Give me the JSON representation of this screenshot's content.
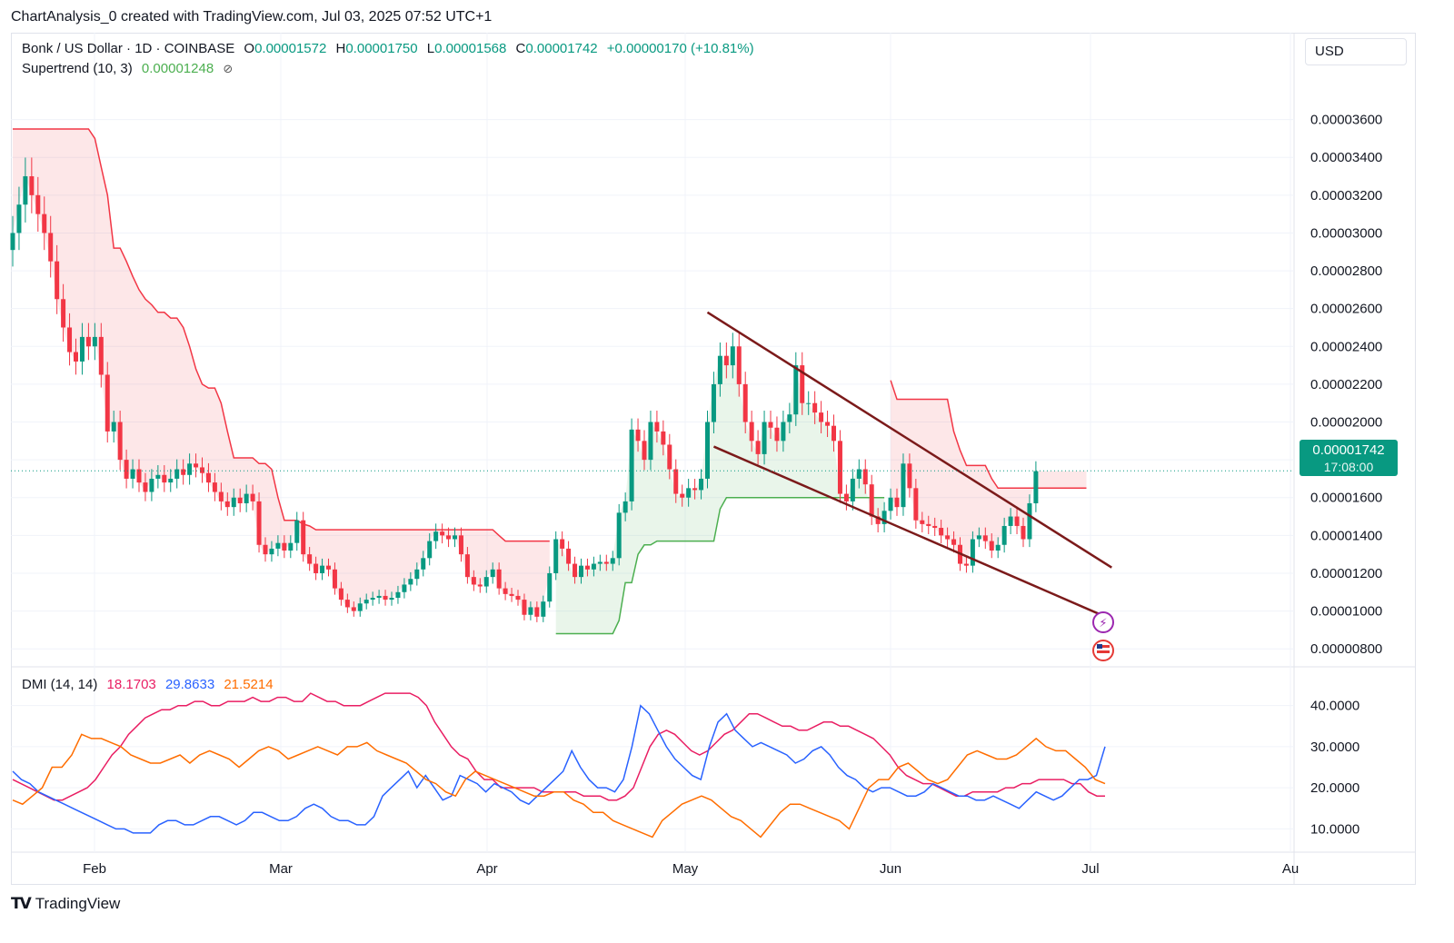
{
  "header": {
    "credit": "ChartAnalysis_0 created with TradingView.com, Jul 03, 2025 07:52 UTC+1"
  },
  "legend": {
    "symbol": "Bonk / US Dollar · 1D · COINBASE",
    "o_label": "O",
    "o_value": "0.00001572",
    "h_label": "H",
    "h_value": "0.00001750",
    "l_label": "L",
    "l_value": "0.00001568",
    "c_label": "C",
    "c_value": "0.00001742",
    "change": "+0.00000170 (+10.81%)",
    "supertrend_label": "Supertrend (10, 3)",
    "supertrend_value": "0.00001248",
    "supertrend_icon": "eye-slash-icon",
    "dmi_label": "DMI (14, 14)",
    "dmi_plus": "18.1703",
    "dmi_minus": "29.8633",
    "dmi_adx": "21.5214"
  },
  "toolbar": {
    "currency": "USD"
  },
  "price_tag": {
    "value": "0.00001742",
    "countdown": "17:08:00"
  },
  "brand": {
    "name": "TradingView",
    "icon": "tradingview-logo-icon"
  },
  "colors": {
    "up": "#089981",
    "down": "#f23645",
    "supertrend_up": "#4caf50",
    "supertrend_down": "#f23645",
    "trendline": "#7b1a1a",
    "dmi_plus": "#e91e63",
    "dmi_minus": "#2962ff",
    "adx": "#ff6d00"
  },
  "chart_data": [
    {
      "type": "candlestick",
      "title": "Bonk / US Dollar · 1D · COINBASE",
      "ylim": [
        7e-06,
        3.8e-05
      ],
      "y_ticks": [
        "0.00003600",
        "0.00003400",
        "0.00003200",
        "0.00003000",
        "0.00002800",
        "0.00002600",
        "0.00002400",
        "0.00002200",
        "0.00002000",
        "0.00001800",
        "0.00001600",
        "0.00001400",
        "0.00001200",
        "0.00001000",
        "0.00000800"
      ],
      "x_ticks": [
        "Feb",
        "Mar",
        "Apr",
        "May",
        "Jun",
        "Jul",
        "Au"
      ],
      "close_series": [
        3e-05,
        3.15e-05,
        3.3e-05,
        3.2e-05,
        3.1e-05,
        3e-05,
        2.85e-05,
        2.65e-05,
        2.5e-05,
        2.37e-05,
        2.32e-05,
        2.45e-05,
        2.4e-05,
        2.45e-05,
        2.25e-05,
        1.95e-05,
        2e-05,
        1.8e-05,
        1.7e-05,
        1.75e-05,
        1.68e-05,
        1.63e-05,
        1.7e-05,
        1.72e-05,
        1.68e-05,
        1.7e-05,
        1.75e-05,
        1.72e-05,
        1.78e-05,
        1.76e-05,
        1.73e-05,
        1.68e-05,
        1.63e-05,
        1.58e-05,
        1.55e-05,
        1.6e-05,
        1.57e-05,
        1.62e-05,
        1.58e-05,
        1.35e-05,
        1.3e-05,
        1.33e-05,
        1.36e-05,
        1.32e-05,
        1.36e-05,
        1.48e-05,
        1.3e-05,
        1.25e-05,
        1.2e-05,
        1.24e-05,
        1.22e-05,
        1.12e-05,
        1.06e-05,
        1.02e-05,
        1e-05,
        1.04e-05,
        1.06e-05,
        1.07e-05,
        1.08e-05,
        1.06e-05,
        1.07e-05,
        1.1e-05,
        1.14e-05,
        1.17e-05,
        1.22e-05,
        1.28e-05,
        1.37e-05,
        1.42e-05,
        1.4e-05,
        1.38e-05,
        1.4e-05,
        1.3e-05,
        1.18e-05,
        1.14e-05,
        1.13e-05,
        1.18e-05,
        1.22e-05,
        1.12e-05,
        1.09e-05,
        1.08e-05,
        1.06e-05,
        9.8e-06,
        1.02e-05,
        9.7e-06,
        1.05e-05,
        1.2e-05,
        1.38e-05,
        1.33e-05,
        1.25e-05,
        1.18e-05,
        1.24e-05,
        1.22e-05,
        1.25e-05,
        1.26e-05,
        1.25e-05,
        1.28e-05,
        1.52e-05,
        1.58e-05,
        1.96e-05,
        1.9e-05,
        1.8e-05,
        2e-05,
        1.95e-05,
        1.88e-05,
        1.75e-05,
        1.62e-05,
        1.6e-05,
        1.65e-05,
        1.64e-05,
        1.7e-05,
        2e-05,
        2.2e-05,
        2.35e-05,
        2.3e-05,
        2.4e-05,
        2.2e-05,
        2e-05,
        1.9e-05,
        1.83e-05,
        2e-05,
        1.97e-05,
        1.9e-05,
        2e-05,
        2.04e-05,
        2.3e-05,
        2.1e-05,
        2.1e-05,
        2.05e-05,
        2e-05,
        1.98e-05,
        1.9e-05,
        1.62e-05,
        1.58e-05,
        1.7e-05,
        1.75e-05,
        1.67e-05,
        1.5e-05,
        1.46e-05,
        1.53e-05,
        1.6e-05,
        1.55e-05,
        1.78e-05,
        1.65e-05,
        1.48e-05,
        1.46e-05,
        1.45e-05,
        1.44e-05,
        1.4e-05,
        1.38e-05,
        1.35e-05,
        1.25e-05,
        1.24e-05,
        1.38e-05,
        1.4e-05,
        1.37e-05,
        1.32e-05,
        1.35e-05,
        1.45e-05,
        1.5e-05,
        1.45e-05,
        1.38e-05,
        1.57e-05,
        1.74e-05
      ],
      "supertrend": {
        "value": 1.248e-05,
        "down_segments": [
          {
            "start": 0,
            "end": 85,
            "values": [
              3.55e-05,
              3.55e-05,
              3.55e-05,
              3.55e-05,
              3.55e-05,
              3.55e-05,
              3.55e-05,
              3.55e-05,
              3.55e-05,
              3.55e-05,
              3.55e-05,
              3.55e-05,
              3.55e-05,
              3.5e-05,
              3.35e-05,
              3.2e-05,
              2.92e-05,
              2.92e-05,
              2.85e-05,
              2.77e-05,
              2.7e-05,
              2.65e-05,
              2.62e-05,
              2.58e-05,
              2.58e-05,
              2.55e-05,
              2.55e-05,
              2.5e-05,
              2.4e-05,
              2.28e-05,
              2.2e-05,
              2.18e-05,
              2.18e-05,
              2.1e-05,
              1.95e-05,
              1.81e-05,
              1.81e-05,
              1.81e-05,
              1.81e-05,
              1.78e-05,
              1.78e-05,
              1.75e-05,
              1.6e-05,
              1.48e-05,
              1.48e-05,
              1.48e-05,
              1.46e-05,
              1.45e-05,
              1.43e-05,
              1.43e-05,
              1.43e-05,
              1.43e-05,
              1.43e-05,
              1.43e-05,
              1.43e-05,
              1.43e-05,
              1.43e-05,
              1.43e-05,
              1.43e-05,
              1.43e-05,
              1.43e-05,
              1.43e-05,
              1.43e-05,
              1.43e-05,
              1.43e-05,
              1.43e-05,
              1.43e-05,
              1.43e-05,
              1.43e-05,
              1.43e-05,
              1.43e-05,
              1.43e-05,
              1.43e-05,
              1.43e-05,
              1.43e-05,
              1.43e-05,
              1.43e-05,
              1.4e-05,
              1.37e-05,
              1.37e-05,
              1.37e-05,
              1.37e-05,
              1.37e-05,
              1.37e-05,
              1.37e-05,
              1.37e-05
            ]
          },
          {
            "start": 139,
            "end": 170,
            "values": [
              2.22e-05,
              2.12e-05,
              2.12e-05,
              2.12e-05,
              2.12e-05,
              2.12e-05,
              2.12e-05,
              2.12e-05,
              2.12e-05,
              2.12e-05,
              1.95e-05,
              1.85e-05,
              1.77e-05,
              1.77e-05,
              1.77e-05,
              1.77e-05,
              1.7e-05,
              1.65e-05,
              1.65e-05,
              1.65e-05,
              1.65e-05,
              1.65e-05,
              1.65e-05,
              1.65e-05,
              1.65e-05,
              1.65e-05,
              1.65e-05,
              1.65e-05,
              1.65e-05,
              1.65e-05,
              1.65e-05,
              1.65e-05
            ]
          }
        ],
        "up_segments": [
          {
            "start": 86,
            "end": 138,
            "values": [
              8.8e-06,
              8.8e-06,
              8.8e-06,
              8.8e-06,
              8.8e-06,
              8.8e-06,
              8.8e-06,
              8.8e-06,
              8.8e-06,
              8.8e-06,
              9.5e-06,
              1.15e-05,
              1.15e-05,
              1.3e-05,
              1.35e-05,
              1.35e-05,
              1.37e-05,
              1.37e-05,
              1.37e-05,
              1.37e-05,
              1.37e-05,
              1.37e-05,
              1.37e-05,
              1.37e-05,
              1.37e-05,
              1.37e-05,
              1.54e-05,
              1.6e-05,
              1.6e-05,
              1.6e-05,
              1.6e-05,
              1.6e-05,
              1.6e-05,
              1.6e-05,
              1.6e-05,
              1.6e-05,
              1.6e-05,
              1.6e-05,
              1.6e-05,
              1.6e-05,
              1.6e-05,
              1.6e-05,
              1.6e-05,
              1.6e-05,
              1.6e-05,
              1.6e-05,
              1.6e-05,
              1.6e-05,
              1.6e-05,
              1.6e-05,
              1.6e-05,
              1.6e-05,
              1.6e-05
            ]
          }
        ]
      },
      "trendlines": [
        {
          "name": "",
          "from": [
            110,
            2.58e-05
          ],
          "to": [
            174,
            1.23e-05
          ]
        },
        {
          "name": "",
          "from": [
            111,
            1.87e-05
          ],
          "to": [
            173,
            9.7e-06
          ]
        }
      ],
      "last_price": 1.742e-05
    },
    {
      "type": "line",
      "title": "DMI (14, 14)",
      "ylim": [
        5,
        47
      ],
      "y_ticks": [
        "40.0000",
        "30.0000",
        "20.0000",
        "10.0000"
      ],
      "series": [
        {
          "name": "",
          "color": "#e91e63",
          "values": [
            22,
            21,
            20,
            19,
            18,
            17,
            17,
            18,
            19,
            20,
            22,
            25,
            28,
            30,
            33,
            35,
            37,
            38,
            39,
            39,
            40,
            40,
            41,
            41,
            40,
            40,
            41,
            41,
            41,
            42,
            41,
            41,
            42,
            42,
            41,
            41,
            43,
            42,
            41,
            41,
            40,
            40,
            40,
            41,
            42,
            43,
            43,
            43,
            43,
            42,
            40,
            36,
            33,
            30,
            28,
            27,
            24,
            22,
            22,
            20,
            20,
            20,
            20,
            20,
            19,
            19,
            19,
            19,
            19,
            18,
            18,
            18,
            17,
            17,
            18,
            20,
            25,
            30,
            33,
            34,
            33,
            31,
            29,
            28,
            29,
            31,
            33,
            34,
            36,
            38,
            38,
            37,
            36,
            35,
            35,
            34,
            34,
            35,
            36,
            36,
            35,
            35,
            34,
            33,
            32,
            30,
            28,
            25,
            23,
            22,
            21,
            21,
            20,
            19,
            18,
            18,
            19,
            19,
            19,
            19,
            20,
            20,
            21,
            21,
            22,
            22,
            22,
            22,
            21,
            21,
            19,
            18,
            18
          ]
        },
        {
          "name": "",
          "color": "#2962ff",
          "values": [
            24,
            22,
            21,
            19,
            18,
            17,
            16,
            15,
            14,
            13,
            12,
            11,
            10,
            10,
            9,
            9,
            9,
            11,
            12,
            12,
            11,
            11,
            12,
            13,
            13,
            12,
            11,
            12,
            14,
            14,
            13,
            12,
            12,
            13,
            15,
            16,
            15,
            13,
            12,
            12,
            11,
            11,
            13,
            18,
            20,
            22,
            24,
            20,
            23,
            20,
            17,
            18,
            23,
            22,
            21,
            19,
            21,
            20,
            19,
            17,
            16,
            18,
            20,
            22,
            24,
            29,
            25,
            22,
            20,
            20,
            19,
            22,
            30,
            40,
            38,
            34,
            30,
            27,
            25,
            23,
            22,
            30,
            36,
            38,
            34,
            32,
            30,
            31,
            30,
            29,
            28,
            26,
            27,
            29,
            30,
            28,
            25,
            23,
            22,
            20,
            19,
            20,
            20,
            19,
            18,
            18,
            19,
            21,
            20,
            19,
            18,
            18,
            17,
            17,
            18,
            17,
            16,
            15,
            17,
            19,
            18,
            17,
            18,
            20,
            22,
            22,
            23,
            30
          ]
        },
        {
          "name": "",
          "color": "#ff6d00",
          "values": [
            17,
            16,
            18,
            20,
            25,
            25,
            28,
            33,
            32,
            32,
            31,
            30,
            28,
            27,
            26,
            26,
            27,
            28,
            26,
            28,
            29,
            28,
            27,
            25,
            27,
            29,
            30,
            29,
            27,
            28,
            29,
            30,
            29,
            28,
            30,
            30,
            31,
            29,
            28,
            27,
            26,
            24,
            22,
            21,
            19,
            18,
            22,
            24,
            23,
            22,
            21,
            20,
            19,
            18,
            18,
            19,
            19,
            17,
            16,
            14,
            14,
            12,
            11,
            10,
            9,
            8,
            12,
            14,
            16,
            17,
            18,
            17,
            15,
            13,
            12,
            10,
            8,
            11,
            14,
            16,
            16,
            15,
            14,
            13,
            12,
            10,
            15,
            20,
            22,
            22,
            25,
            26,
            24,
            22,
            21,
            22,
            25,
            28,
            29,
            28,
            27,
            27,
            28,
            30,
            32,
            30,
            29,
            29,
            27,
            25,
            22,
            21
          ]
        }
      ]
    }
  ]
}
